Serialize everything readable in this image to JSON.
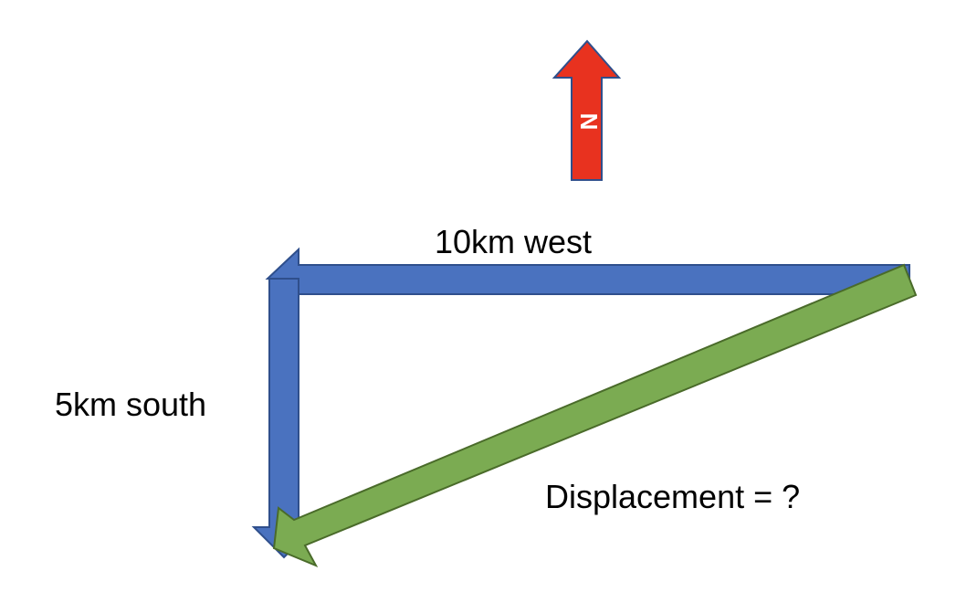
{
  "diagram": {
    "north_label": "N",
    "west_label": "10km west",
    "south_label": "5km south",
    "displacement_label": "Displacement = ?"
  },
  "colors": {
    "north_arrow_fill": "#e8321f",
    "north_arrow_stroke": "#2f4f8c",
    "vector_fill": "#4a72bf",
    "vector_stroke": "#2f4f8c",
    "displacement_fill": "#7bab52",
    "displacement_stroke": "#4a6b2a"
  },
  "icons": {
    "north_arrow": "north-arrow-icon"
  }
}
